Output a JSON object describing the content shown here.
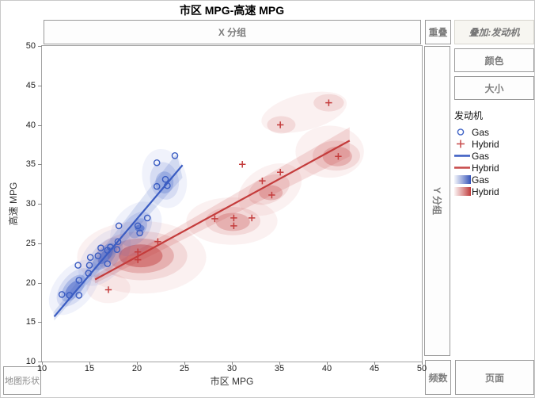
{
  "title": "市区 MPG-高速 MPG",
  "drop_zones": {
    "x_group": {
      "label": "X 分组"
    },
    "y_group": {
      "label": "Y 分组"
    },
    "overlap": {
      "label": "重叠"
    },
    "overlay": {
      "label": "叠加:发动机"
    },
    "color": {
      "label": "颜色"
    },
    "size": {
      "label": "大小"
    },
    "frequency": {
      "label": "频数"
    },
    "page": {
      "label": "页面"
    },
    "map_shape": {
      "label": "地图形状"
    }
  },
  "legend": {
    "title": "发动机",
    "items": [
      {
        "marker": "circle",
        "color": "#3f63c6",
        "label": "Gas"
      },
      {
        "marker": "plus",
        "color": "#c74a4a",
        "label": "Hybrid"
      },
      {
        "marker": "line",
        "color": "#3a5cc2",
        "label": "Gas"
      },
      {
        "marker": "line",
        "color": "#c74a4a",
        "label": "Hybrid"
      },
      {
        "marker": "gradient",
        "color": "#3553b8",
        "label": "Gas"
      },
      {
        "marker": "gradient",
        "color": "#bf3a3a",
        "label": "Hybrid"
      }
    ]
  },
  "chart_data": {
    "type": "scatter",
    "title": "市区 MPG-高速 MPG",
    "xlabel": "市区 MPG",
    "ylabel": "高速 MPG",
    "xlim": [
      10,
      50
    ],
    "ylim": [
      10,
      50
    ],
    "xticks": [
      10,
      15,
      20,
      25,
      30,
      35,
      40,
      45,
      50
    ],
    "yticks": [
      10,
      15,
      20,
      25,
      30,
      35,
      40,
      45,
      50
    ],
    "grid": false,
    "legend_position": "right",
    "series": [
      {
        "name": "Gas",
        "marker": "circle",
        "color": "#3a5cc2",
        "points": [
          [
            12.1,
            18.5
          ],
          [
            12.9,
            18.4
          ],
          [
            13.9,
            18.4
          ],
          [
            13.9,
            20.3
          ],
          [
            13.8,
            22.2
          ],
          [
            14.9,
            21.2
          ],
          [
            15.0,
            22.2
          ],
          [
            15.1,
            23.2
          ],
          [
            15.9,
            23.4
          ],
          [
            16.2,
            24.4
          ],
          [
            16.9,
            22.4
          ],
          [
            16.9,
            24.1
          ],
          [
            17.2,
            24.5
          ],
          [
            17.9,
            24.2
          ],
          [
            18.0,
            25.2
          ],
          [
            18.1,
            27.2
          ],
          [
            20.3,
            26.3
          ],
          [
            20.1,
            27.2
          ],
          [
            21.1,
            28.2
          ],
          [
            22.1,
            32.2
          ],
          [
            23.2,
            32.3
          ],
          [
            23.0,
            33.1
          ],
          [
            22.1,
            35.2
          ],
          [
            24.0,
            36.1
          ]
        ],
        "fit_line": [
          [
            11.3,
            15.7
          ],
          [
            24.8,
            34.9
          ]
        ],
        "band": [
          [
            11.3,
            15.2
          ],
          [
            24.8,
            33.3
          ],
          [
            24.2,
            36.4
          ],
          [
            11.2,
            16.2
          ]
        ]
      },
      {
        "name": "Hybrid",
        "marker": "plus",
        "color": "#c43c3c",
        "points": [
          [
            17.0,
            19.1
          ],
          [
            20.1,
            22.9
          ],
          [
            20.1,
            23.9
          ],
          [
            22.2,
            25.2
          ],
          [
            28.2,
            28.1
          ],
          [
            30.2,
            27.2
          ],
          [
            30.2,
            28.2
          ],
          [
            32.1,
            28.2
          ],
          [
            31.1,
            35.0
          ],
          [
            33.2,
            32.9
          ],
          [
            34.2,
            31.1
          ],
          [
            35.1,
            34.0
          ],
          [
            35.1,
            40.0
          ],
          [
            40.2,
            42.8
          ],
          [
            41.2,
            36.0
          ]
        ],
        "fit_line": [
          [
            15.6,
            20.4
          ],
          [
            42.4,
            38.0
          ]
        ],
        "band": [
          [
            15.6,
            19.9
          ],
          [
            42.4,
            36.0
          ],
          [
            42.4,
            39.7
          ],
          [
            15.5,
            20.9
          ]
        ]
      }
    ],
    "density_contours": {
      "hybrid": {
        "color": "#c23b3b",
        "blobs": [
          {
            "x": 20.5,
            "y": 23.2,
            "rx": 6.8,
            "ry": 4.6,
            "rot": 0,
            "a": 0.07
          },
          {
            "x": 17.0,
            "y": 19.3,
            "rx": 2.3,
            "ry": 1.9,
            "rot": 0,
            "a": 0.07
          },
          {
            "x": 30.0,
            "y": 27.8,
            "rx": 4.8,
            "ry": 3.0,
            "rot": 0,
            "a": 0.07
          },
          {
            "x": 34.0,
            "y": 31.8,
            "rx": 3.6,
            "ry": 2.9,
            "rot": -30,
            "a": 0.07
          },
          {
            "x": 40.3,
            "y": 36.6,
            "rx": 3.6,
            "ry": 3.3,
            "rot": 0,
            "a": 0.07
          },
          {
            "x": 37.6,
            "y": 41.6,
            "rx": 4.6,
            "ry": 2.3,
            "rot": -14,
            "a": 0.07
          },
          {
            "x": 20.5,
            "y": 23.4,
            "rx": 4.8,
            "ry": 3.1,
            "rot": 0,
            "a": 0.13
          },
          {
            "x": 30.1,
            "y": 27.8,
            "rx": 2.9,
            "ry": 1.8,
            "rot": 0,
            "a": 0.13
          },
          {
            "x": 33.9,
            "y": 31.8,
            "rx": 2.3,
            "ry": 1.7,
            "rot": -25,
            "a": 0.13
          },
          {
            "x": 41.0,
            "y": 36.1,
            "rx": 2.5,
            "ry": 1.9,
            "rot": 0,
            "a": 0.13
          },
          {
            "x": 35.2,
            "y": 40.0,
            "rx": 1.5,
            "ry": 1.1,
            "rot": 0,
            "a": 0.13
          },
          {
            "x": 40.2,
            "y": 42.8,
            "rx": 1.6,
            "ry": 1.1,
            "rot": 0,
            "a": 0.13
          },
          {
            "x": 20.4,
            "y": 23.4,
            "rx": 3.5,
            "ry": 2.2,
            "rot": 0,
            "a": 0.26
          },
          {
            "x": 30.1,
            "y": 27.7,
            "rx": 1.8,
            "ry": 1.15,
            "rot": 0,
            "a": 0.26
          },
          {
            "x": 34.1,
            "y": 31.4,
            "rx": 1.25,
            "ry": 0.95,
            "rot": 0,
            "a": 0.26
          },
          {
            "x": 41.1,
            "y": 36.0,
            "rx": 1.55,
            "ry": 1.25,
            "rot": 0,
            "a": 0.26
          },
          {
            "x": 20.4,
            "y": 23.4,
            "rx": 2.3,
            "ry": 1.45,
            "rot": 0,
            "a": 0.45
          }
        ]
      },
      "gas": {
        "color": "#3b5ec6",
        "blobs": [
          {
            "x": 13.4,
            "y": 19.4,
            "rx": 3.4,
            "ry": 2.4,
            "rot": -50,
            "a": 0.08
          },
          {
            "x": 16.6,
            "y": 23.2,
            "rx": 3.5,
            "ry": 2.5,
            "rot": -50,
            "a": 0.08
          },
          {
            "x": 19.9,
            "y": 26.8,
            "rx": 3.2,
            "ry": 2.8,
            "rot": -50,
            "a": 0.08
          },
          {
            "x": 22.9,
            "y": 33.2,
            "rx": 2.3,
            "ry": 3.8,
            "rot": -15,
            "a": 0.08
          },
          {
            "x": 13.4,
            "y": 19.4,
            "rx": 2.4,
            "ry": 1.6,
            "rot": -50,
            "a": 0.14
          },
          {
            "x": 16.6,
            "y": 23.2,
            "rx": 2.5,
            "ry": 1.6,
            "rot": -50,
            "a": 0.14
          },
          {
            "x": 19.9,
            "y": 26.8,
            "rx": 2.1,
            "ry": 1.6,
            "rot": -50,
            "a": 0.14
          },
          {
            "x": 22.9,
            "y": 32.9,
            "rx": 1.5,
            "ry": 2.4,
            "rot": -12,
            "a": 0.14
          },
          {
            "x": 13.3,
            "y": 19.3,
            "rx": 1.7,
            "ry": 1.05,
            "rot": -50,
            "a": 0.26
          },
          {
            "x": 16.6,
            "y": 23.3,
            "rx": 1.7,
            "ry": 1.05,
            "rot": -50,
            "a": 0.26
          },
          {
            "x": 20.1,
            "y": 26.9,
            "rx": 1.2,
            "ry": 0.95,
            "rot": -50,
            "a": 0.26
          },
          {
            "x": 22.9,
            "y": 32.7,
            "rx": 0.95,
            "ry": 1.4,
            "rot": 0,
            "a": 0.26
          },
          {
            "x": 13.2,
            "y": 19.2,
            "rx": 1.05,
            "ry": 0.6,
            "rot": -50,
            "a": 0.45
          },
          {
            "x": 16.7,
            "y": 23.4,
            "rx": 1.05,
            "ry": 0.6,
            "rot": -50,
            "a": 0.45
          },
          {
            "x": 20.3,
            "y": 26.9,
            "rx": 0.5,
            "ry": 0.45,
            "rot": 0,
            "a": 0.6
          }
        ]
      }
    }
  }
}
